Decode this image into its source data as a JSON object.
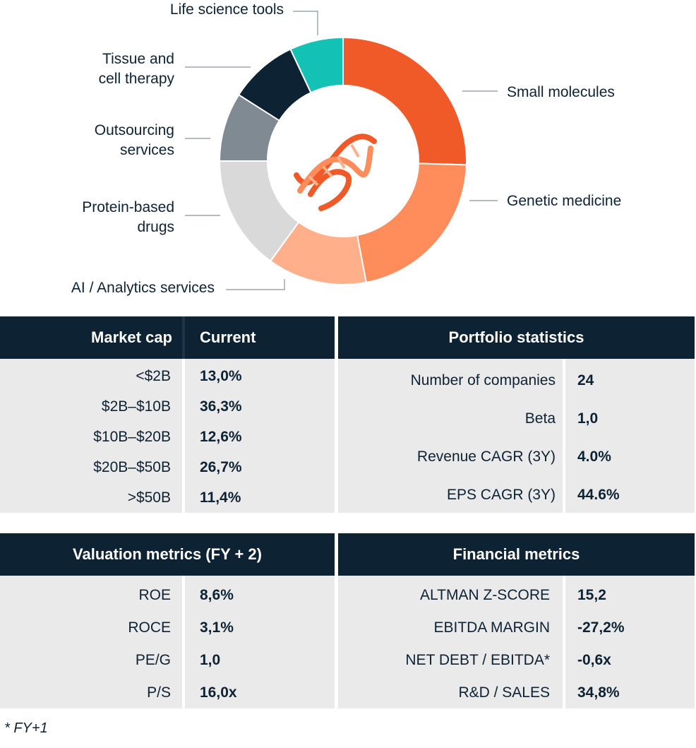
{
  "chart_data": {
    "type": "pie",
    "style": "donut",
    "categories": [
      "Small molecules",
      "Genetic medicine",
      "AI / Analytics services",
      "Protein-based drugs",
      "Outsourcing services",
      "Tissue and cell therapy",
      "Life science tools"
    ],
    "values": [
      25.5,
      21.5,
      13,
      15,
      9,
      9,
      7
    ],
    "colors": [
      "#f05a28",
      "#ff8c5a",
      "#ffb08a",
      "#d9d9d9",
      "#808a93",
      "#0d2233",
      "#14c1b5"
    ],
    "center_icon": "dna-icon"
  },
  "labels": {
    "life_science": "Life science tools",
    "tissue_1": "Tissue and",
    "tissue_2": "cell therapy",
    "outsourcing_1": "Outsourcing",
    "outsourcing_2": "services",
    "protein_1": "Protein-based",
    "protein_2": "drugs",
    "ai": "AI / Analytics services",
    "small": "Small molecules",
    "genetic": "Genetic medicine"
  },
  "market_cap": {
    "header_left": "Market cap",
    "header_right": "Current",
    "rows": [
      {
        "k": "<$2B",
        "v": "13,0%"
      },
      {
        "k": "$2B–$10B",
        "v": "36,3%"
      },
      {
        "k": "$10B–$20B",
        "v": "12,6%"
      },
      {
        "k": "$20B–$50B",
        "v": "26,7%"
      },
      {
        "k": ">$50B",
        "v": "11,4%"
      }
    ]
  },
  "portfolio": {
    "header": "Portfolio statistics",
    "rows": [
      {
        "k": "Number of companies",
        "v": "24"
      },
      {
        "k": "Beta",
        "v": "1,0"
      },
      {
        "k": "Revenue CAGR (3Y)",
        "v": "4.0%"
      },
      {
        "k": "EPS CAGR (3Y)",
        "v": "44.6%"
      }
    ]
  },
  "valuation": {
    "header": "Valuation metrics (FY + 2)",
    "rows": [
      {
        "k": "ROE",
        "v": "8,6%"
      },
      {
        "k": "ROCE",
        "v": "3,1%"
      },
      {
        "k": "PE/G",
        "v": "1,0"
      },
      {
        "k": "P/S",
        "v": "16,0x"
      }
    ]
  },
  "financial": {
    "header": "Financial metrics",
    "rows": [
      {
        "k": "ALTMAN Z-SCORE",
        "v": "15,2"
      },
      {
        "k": "EBITDA MARGIN",
        "v": "-27,2%"
      },
      {
        "k": "NET DEBT / EBITDA*",
        "v": "-0,6x"
      },
      {
        "k": "R&D / SALES",
        "v": "34,8%"
      }
    ]
  },
  "footnote": "* FY+1"
}
